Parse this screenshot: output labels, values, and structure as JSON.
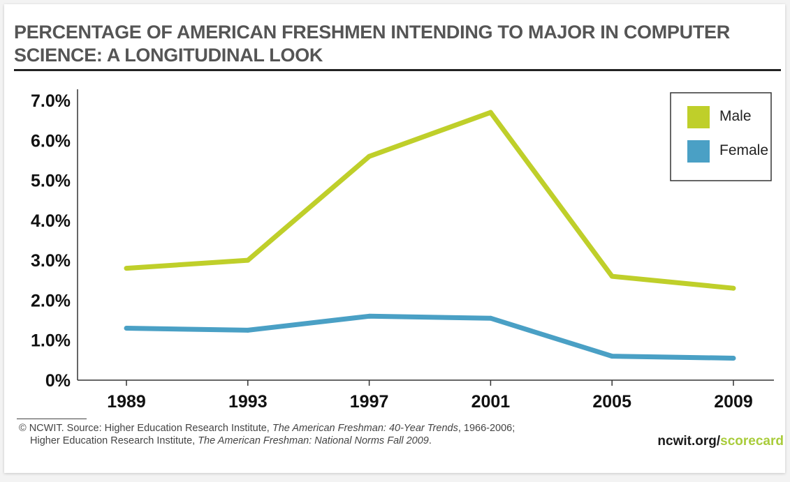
{
  "chart_data": {
    "type": "line",
    "title": "PERCENTAGE OF AMERICAN FRESHMEN INTENDING TO MAJOR IN COMPUTER SCIENCE: A LONGITUDINAL LOOK",
    "x": [
      "1989",
      "1993",
      "1997",
      "2001",
      "2005",
      "2009"
    ],
    "x_ticks": [
      "1989",
      "1993",
      "1997",
      "2001",
      "2005",
      "2009"
    ],
    "y_ticks": [
      "0%",
      "1.0%",
      "2.0%",
      "3.0%",
      "4.0%",
      "5.0%",
      "6.0%",
      "7.0%"
    ],
    "ylim": [
      0,
      7
    ],
    "xlabel": "",
    "ylabel": "",
    "grid": false,
    "legend_position": "top-right",
    "series": [
      {
        "name": "Male",
        "color": "#bfcf2a",
        "values": [
          2.8,
          3.0,
          5.6,
          6.7,
          2.6,
          2.3
        ]
      },
      {
        "name": "Female",
        "color": "#4aa0c5",
        "values": [
          1.3,
          1.25,
          1.6,
          1.55,
          0.6,
          0.55
        ]
      }
    ]
  },
  "footer": {
    "source_prefix": "© NCWIT. Source: Higher Education Research Institute, ",
    "source_title_1": "The American Freshman: 40-Year Trends",
    "source_suffix_1": ", 1966-2006;",
    "source_line2_prefix": "Higher Education Research Institute, ",
    "source_title_2": "The American Freshman: National Norms Fall 2009",
    "source_suffix_2": ".",
    "brand_main": "ncwit.org/",
    "brand_accent": "scorecard"
  }
}
